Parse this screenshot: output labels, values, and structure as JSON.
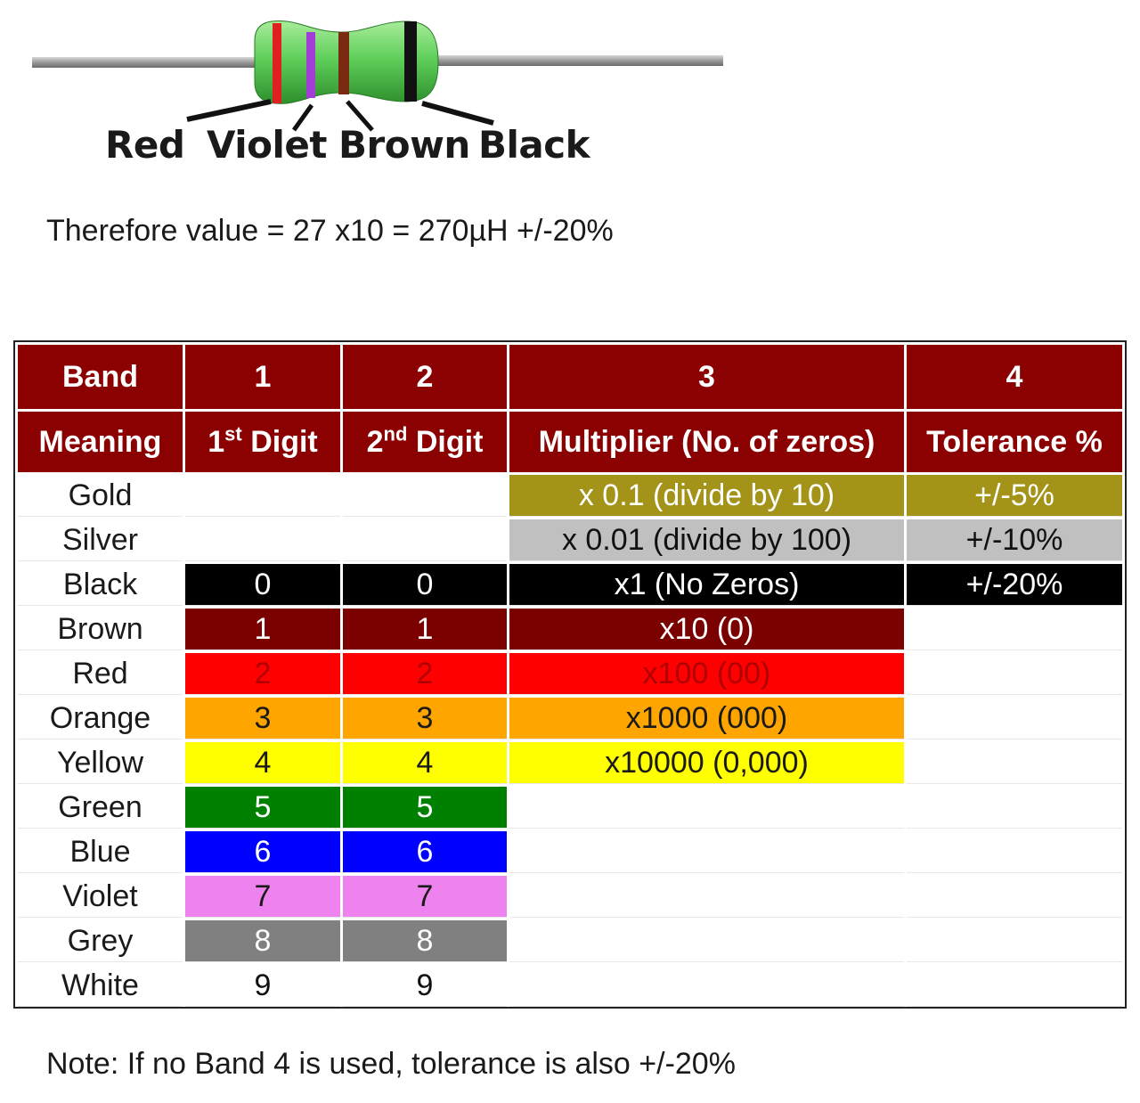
{
  "illustration": {
    "band_labels": [
      "Red",
      "Violet",
      "Brown",
      "Black"
    ],
    "colors": {
      "body": "#5fcf5a",
      "lead": "#9a9a9a",
      "band1": "#e02020",
      "band2": "#a23dd6",
      "band3": "#7a2a10",
      "band4": "#111111"
    }
  },
  "value_text": "Therefore value = 27 x10 = 270µH +/-20%",
  "table": {
    "header_row1": [
      "Band",
      "1",
      "2",
      "3",
      "4"
    ],
    "header_row2": {
      "meaning": "Meaning",
      "digit1_num": "1",
      "digit1_sup": "st",
      "digit1_word": "Digit",
      "digit2_num": "2",
      "digit2_sup": "nd",
      "digit2_word": "Digit",
      "multiplier": "Multiplier (No. of zeros)",
      "tolerance": "Tolerance %"
    },
    "rows": [
      {
        "name": "Gold",
        "d1": "",
        "d2": "",
        "mult": "x 0.1 (divide by 10)",
        "tol": "+/-5%",
        "d_bg": "#ffffff",
        "d_fg": "#111111",
        "m_bg": "#a39319",
        "m_fg": "#ffffff",
        "t_bg": "#a39319",
        "t_fg": "#ffffff"
      },
      {
        "name": "Silver",
        "d1": "",
        "d2": "",
        "mult": "x 0.01 (divide by 100)",
        "tol": "+/-10%",
        "d_bg": "#ffffff",
        "d_fg": "#111111",
        "m_bg": "#c0c0c0",
        "m_fg": "#111111",
        "t_bg": "#c0c0c0",
        "t_fg": "#111111"
      },
      {
        "name": "Black",
        "d1": "0",
        "d2": "0",
        "mult": "x1 (No Zeros)",
        "tol": "+/-20%",
        "d_bg": "#000000",
        "d_fg": "#ffffff",
        "m_bg": "#000000",
        "m_fg": "#ffffff",
        "t_bg": "#000000",
        "t_fg": "#ffffff"
      },
      {
        "name": "Brown",
        "d1": "1",
        "d2": "1",
        "mult": "x10 (0)",
        "tol": "",
        "d_bg": "#7b0000",
        "d_fg": "#ffffff",
        "m_bg": "#7b0000",
        "m_fg": "#ffffff",
        "t_bg": "#ffffff",
        "t_fg": "#111111"
      },
      {
        "name": "Red",
        "d1": "2",
        "d2": "2",
        "mult": "x100 (00)",
        "tol": "",
        "d_bg": "#ff0000",
        "d_fg": "#b00000",
        "m_bg": "#ff0000",
        "m_fg": "#b00000",
        "t_bg": "#ffffff",
        "t_fg": "#111111"
      },
      {
        "name": "Orange",
        "d1": "3",
        "d2": "3",
        "mult": "x1000 (000)",
        "tol": "",
        "d_bg": "#ffa500",
        "d_fg": "#1a1a1a",
        "m_bg": "#ffa500",
        "m_fg": "#1a1a1a",
        "t_bg": "#ffffff",
        "t_fg": "#111111"
      },
      {
        "name": "Yellow",
        "d1": "4",
        "d2": "4",
        "mult": "x10000 (0,000)",
        "tol": "",
        "d_bg": "#ffff00",
        "d_fg": "#1a1a1a",
        "m_bg": "#ffff00",
        "m_fg": "#1a1a1a",
        "t_bg": "#ffffff",
        "t_fg": "#111111"
      },
      {
        "name": "Green",
        "d1": "5",
        "d2": "5",
        "mult": "",
        "tol": "",
        "d_bg": "#008000",
        "d_fg": "#ffffff",
        "m_bg": "#ffffff",
        "m_fg": "#111111",
        "t_bg": "#ffffff",
        "t_fg": "#111111"
      },
      {
        "name": "Blue",
        "d1": "6",
        "d2": "6",
        "mult": "",
        "tol": "",
        "d_bg": "#0000ff",
        "d_fg": "#ffffff",
        "m_bg": "#ffffff",
        "m_fg": "#111111",
        "t_bg": "#ffffff",
        "t_fg": "#111111"
      },
      {
        "name": "Violet",
        "d1": "7",
        "d2": "7",
        "mult": "",
        "tol": "",
        "d_bg": "#ee82ee",
        "d_fg": "#1a1a1a",
        "m_bg": "#ffffff",
        "m_fg": "#111111",
        "t_bg": "#ffffff",
        "t_fg": "#111111"
      },
      {
        "name": "Grey",
        "d1": "8",
        "d2": "8",
        "mult": "",
        "tol": "",
        "d_bg": "#808080",
        "d_fg": "#ffffff",
        "m_bg": "#ffffff",
        "m_fg": "#111111",
        "t_bg": "#ffffff",
        "t_fg": "#111111"
      },
      {
        "name": "White",
        "d1": "9",
        "d2": "9",
        "mult": "",
        "tol": "",
        "d_bg": "#ffffff",
        "d_fg": "#111111",
        "m_bg": "#ffffff",
        "m_fg": "#111111",
        "t_bg": "#ffffff",
        "t_fg": "#111111"
      }
    ]
  },
  "note_text": "Note: If no Band 4 is used, tolerance is also +/-20%"
}
